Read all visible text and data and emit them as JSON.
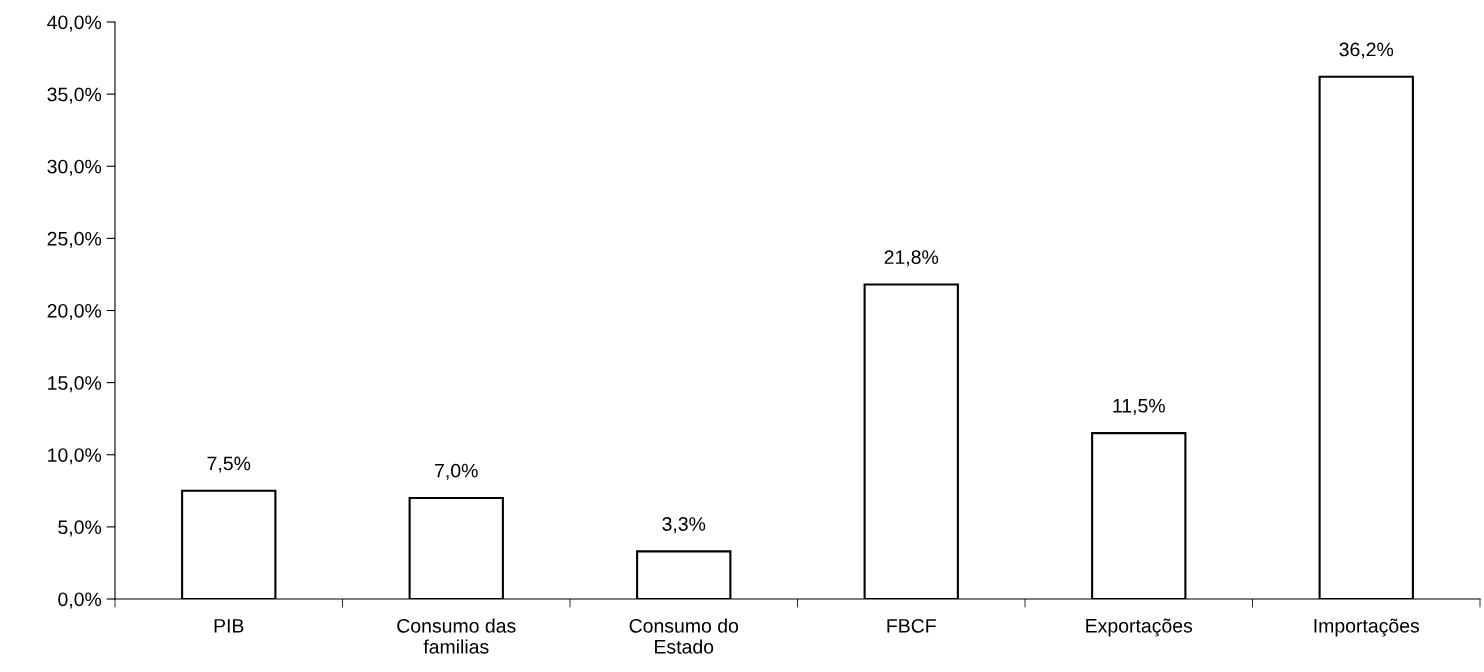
{
  "chart_data": {
    "type": "bar",
    "categories": [
      "PIB",
      "Consumo das familias",
      "Consumo do Estado",
      "FBCF",
      "Exportações",
      "Importações"
    ],
    "values": [
      7.5,
      7.0,
      3.3,
      21.8,
      11.5,
      36.2
    ],
    "value_labels": [
      "7,5%",
      "7,0%",
      "3,3%",
      "21,8%",
      "11,5%",
      "36,2%"
    ],
    "color": "#ffffff",
    "ylim": [
      0,
      40
    ],
    "yticks": [
      {
        "value": 0,
        "label": "0,0%"
      },
      {
        "value": 5,
        "label": "5,0%"
      },
      {
        "value": 10,
        "label": "10,0%"
      },
      {
        "value": 15,
        "label": "15,0%"
      },
      {
        "value": 20,
        "label": "20,0%"
      },
      {
        "value": 25,
        "label": "25,0%"
      },
      {
        "value": 30,
        "label": "30,0%"
      },
      {
        "value": 35,
        "label": "35,0%"
      },
      {
        "value": 40,
        "label": "40,0%"
      }
    ],
    "grid": false,
    "legend": false
  }
}
